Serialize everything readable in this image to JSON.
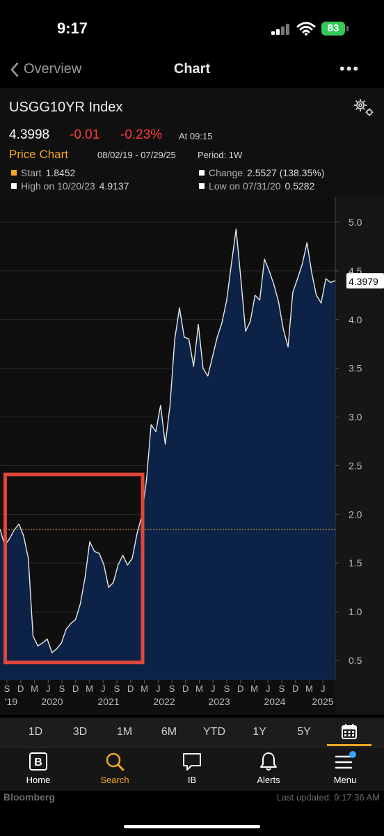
{
  "status": {
    "time": "9:17",
    "battery": "83"
  },
  "nav": {
    "back_label": "Overview",
    "title": "Chart",
    "more": "•••"
  },
  "security": {
    "name": "USGG10YR Index",
    "price": "4.3998",
    "change": "-0.01",
    "change_pct": "-0.23%",
    "as_of": "At 09:15"
  },
  "chart_header": {
    "label": "Price Chart",
    "range": "08/02/19 - 07/29/25",
    "period": "Period: 1W",
    "start_label": "Start",
    "start_value": "1.8452",
    "change_label": "Change",
    "change_value": "2.5527 (138.35%)",
    "high_label": "High on 10/20/23",
    "high_value": "4.9137",
    "low_label": "Low on 07/31/20",
    "low_value": "0.5282",
    "last_value": "4.3979"
  },
  "chart_data": {
    "type": "area",
    "title": "",
    "xlabel": "",
    "ylabel": "",
    "ylim": [
      0.3,
      5.2
    ],
    "y_ticks": [
      "5.0",
      "4.5",
      "4.0",
      "3.5",
      "3.0",
      "2.5",
      "2.0",
      "1.5",
      "1.0",
      "0.5"
    ],
    "x_months": [
      "S",
      "D",
      "M",
      "J",
      "S",
      "D",
      "M",
      "J",
      "S",
      "D",
      "M",
      "J",
      "S",
      "D",
      "M",
      "J",
      "S",
      "D",
      "M",
      "J",
      "S",
      "D",
      "M",
      "J"
    ],
    "x_years": [
      "'19",
      "2020",
      "2021",
      "2022",
      "2023",
      "2024",
      "2025"
    ],
    "reference_line": 1.8452,
    "x": [
      "2019-08",
      "2019-09",
      "2019-10",
      "2019-11",
      "2019-12",
      "2020-01",
      "2020-02",
      "2020-03",
      "2020-04",
      "2020-05",
      "2020-06",
      "2020-07",
      "2020-08",
      "2020-09",
      "2020-10",
      "2020-11",
      "2020-12",
      "2021-01",
      "2021-02",
      "2021-03",
      "2021-04",
      "2021-05",
      "2021-06",
      "2021-07",
      "2021-08",
      "2021-09",
      "2021-10",
      "2021-11",
      "2021-12",
      "2022-01",
      "2022-02",
      "2022-03",
      "2022-04",
      "2022-05",
      "2022-06",
      "2022-07",
      "2022-08",
      "2022-09",
      "2022-10",
      "2022-11",
      "2022-12",
      "2023-01",
      "2023-02",
      "2023-03",
      "2023-04",
      "2023-05",
      "2023-06",
      "2023-07",
      "2023-08",
      "2023-09",
      "2023-10",
      "2023-11",
      "2023-12",
      "2024-01",
      "2024-02",
      "2024-03",
      "2024-04",
      "2024-05",
      "2024-06",
      "2024-07",
      "2024-08",
      "2024-09",
      "2024-10",
      "2024-11",
      "2024-12",
      "2025-01",
      "2025-02",
      "2025-03",
      "2025-04",
      "2025-05",
      "2025-06",
      "2025-07"
    ],
    "values": [
      1.85,
      1.68,
      1.75,
      1.84,
      1.9,
      1.78,
      1.55,
      0.75,
      0.65,
      0.68,
      0.72,
      0.58,
      0.62,
      0.68,
      0.82,
      0.88,
      0.92,
      1.08,
      1.35,
      1.72,
      1.62,
      1.6,
      1.48,
      1.25,
      1.3,
      1.48,
      1.58,
      1.48,
      1.55,
      1.8,
      1.98,
      2.35,
      2.92,
      2.85,
      3.12,
      2.72,
      3.12,
      3.8,
      4.12,
      3.82,
      3.8,
      3.52,
      3.95,
      3.5,
      3.42,
      3.62,
      3.82,
      3.97,
      4.2,
      4.57,
      4.93,
      4.42,
      3.88,
      3.98,
      4.25,
      4.2,
      4.62,
      4.5,
      4.36,
      4.18,
      3.9,
      3.72,
      4.28,
      4.42,
      4.57,
      4.79,
      4.48,
      4.25,
      4.17,
      4.42,
      4.38,
      4.4
    ]
  },
  "timeframes": [
    "1D",
    "3D",
    "1M",
    "6M",
    "YTD",
    "1Y",
    "5Y"
  ],
  "tabs": {
    "home": "Home",
    "search": "Search",
    "ib": "IB",
    "alerts": "Alerts",
    "menu": "Menu"
  },
  "footer": {
    "brand": "Bloomberg",
    "updated": "Last updated: 9:17:36 AM"
  }
}
